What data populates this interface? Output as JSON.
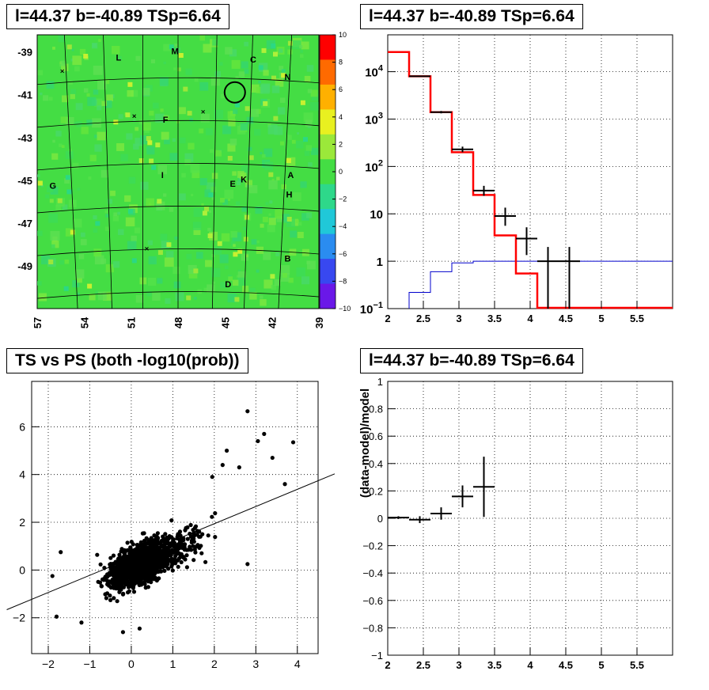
{
  "panels": {
    "map": {
      "title": "l=44.37 b=-40.89 TSp=6.64",
      "y_ticks": [
        "-39",
        "-41",
        "-43",
        "-45",
        "-47",
        "-49"
      ],
      "x_ticks": [
        "57",
        "54",
        "51",
        "48",
        "45",
        "42",
        "39"
      ],
      "colorbar_ticks": [
        "10",
        "8",
        "6",
        "4",
        "2",
        "0",
        "−2",
        "−4",
        "−6",
        "−8",
        "−10"
      ],
      "source_letters": [
        "M",
        "L",
        "C",
        "N",
        "F",
        "I",
        "E",
        "K",
        "A",
        "H",
        "G",
        "B",
        "D"
      ]
    },
    "spectrum": {
      "title": "l=44.37 b=-40.89 TSp=6.64",
      "y_ticks": [
        "10^4",
        "10^3",
        "10^2",
        "10",
        "1",
        "10^-1"
      ],
      "x_ticks": [
        "2",
        "2.5",
        "3",
        "3.5",
        "4",
        "4.5",
        "5",
        "5.5"
      ]
    },
    "scatter": {
      "title": "TS vs PS (both -log10(prob))",
      "x_ticks": [
        "−2",
        "−1",
        "0",
        "1",
        "2",
        "3",
        "4"
      ],
      "y_ticks": [
        "6",
        "4",
        "2",
        "0",
        "−2"
      ]
    },
    "residual": {
      "title": "l=44.37 b=-40.89 TSp=6.64",
      "ylabel": "(data-model)/model",
      "x_ticks": [
        "2",
        "2.5",
        "3",
        "3.5",
        "4",
        "4.5",
        "5",
        "5.5"
      ],
      "y_ticks": [
        "1",
        "0.8",
        "0.6",
        "0.4",
        "0.2",
        "0",
        "−0.2",
        "−0.4",
        "−0.6",
        "−0.8",
        "−1"
      ]
    }
  },
  "colors": {
    "map_bg": "#44dd44",
    "model_line": "#ff0000",
    "background_line": "#0000cc",
    "data": "#000000"
  },
  "chart_data": [
    {
      "type": "heatmap",
      "title": "l=44.37 b=-40.89 TSp=6.64",
      "xlim": [
        57,
        39
      ],
      "ylim": [
        -51,
        -38.2
      ],
      "zlim": [
        -10,
        10
      ],
      "typical_value": 1,
      "source_labels": [
        {
          "name": "M",
          "x": 48.2,
          "y": -39.1
        },
        {
          "name": "L",
          "x": 51.8,
          "y": -39.4
        },
        {
          "name": "C",
          "x": 43.2,
          "y": -39.5
        },
        {
          "name": "N",
          "x": 41.0,
          "y": -40.3
        },
        {
          "name": "F",
          "x": 48.8,
          "y": -42.3
        },
        {
          "name": "I",
          "x": 49.0,
          "y": -44.9
        },
        {
          "name": "E",
          "x": 44.5,
          "y": -45.3
        },
        {
          "name": "K",
          "x": 43.8,
          "y": -45.1
        },
        {
          "name": "A",
          "x": 40.8,
          "y": -44.9
        },
        {
          "name": "H",
          "x": 40.9,
          "y": -45.8
        },
        {
          "name": "G",
          "x": 56.0,
          "y": -45.4
        },
        {
          "name": "B",
          "x": 41.0,
          "y": -48.8
        },
        {
          "name": "D",
          "x": 44.8,
          "y": -50.0
        }
      ],
      "marked_source": {
        "x": 44.37,
        "y": -40.89
      }
    },
    {
      "type": "line",
      "title": "l=44.37 b=-40.89 TSp=6.64",
      "yscale": "log",
      "xlim": [
        2,
        6
      ],
      "ylim": [
        0.1,
        60000
      ],
      "series": [
        {
          "kind": "step",
          "edges": [
            2,
            2.3,
            2.6,
            2.9,
            3.2,
            3.5,
            3.8,
            4.1,
            4.4,
            6
          ],
          "values": [
            26000,
            8000,
            1400,
            200,
            25,
            3.5,
            0.55,
            0.1,
            0.1,
            0.1
          ]
        },
        {
          "kind": "step",
          "edges": [
            2.3,
            2.6,
            2.9,
            3.2,
            3.5,
            6
          ],
          "values": [
            0.22,
            0.6,
            0.92,
            1.0,
            1.0,
            1.0
          ]
        },
        {
          "kind": "errorbar",
          "points": [
            {
              "x": 2.45,
              "y": 8000,
              "xerr": 0.15,
              "ylo": 7800,
              "yhi": 8200
            },
            {
              "x": 2.75,
              "y": 1400,
              "xerr": 0.15,
              "ylo": 1320,
              "yhi": 1480
            },
            {
              "x": 3.05,
              "y": 230,
              "xerr": 0.15,
              "ylo": 200,
              "yhi": 262
            },
            {
              "x": 3.35,
              "y": 31,
              "xerr": 0.15,
              "ylo": 24,
              "yhi": 39
            },
            {
              "x": 3.65,
              "y": 9,
              "xerr": 0.15,
              "ylo": 5.6,
              "yhi": 13.5
            },
            {
              "x": 3.95,
              "y": 3,
              "xerr": 0.15,
              "ylo": 1.35,
              "yhi": 5.2
            },
            {
              "x": 4.25,
              "y": 1,
              "xerr": 0.15,
              "ylo": 0.09,
              "yhi": 2
            },
            {
              "x": 4.55,
              "y": 1,
              "xerr": 0.15,
              "ylo": 0.09,
              "yhi": 2
            }
          ]
        }
      ]
    },
    {
      "type": "scatter",
      "title": "TS vs PS (both -log10(prob))",
      "xlim": [
        -2.4,
        4.5
      ],
      "ylim": [
        -3.5,
        7.9
      ],
      "fit_line": {
        "slope": 0.72,
        "intercept": 0.5
      },
      "notable_points": [
        [
          2.8,
          6.65
        ],
        [
          3.2,
          5.7
        ],
        [
          3.9,
          5.35
        ],
        [
          3.4,
          4.7
        ],
        [
          2.3,
          5.0
        ],
        [
          3.05,
          5.4
        ],
        [
          3.7,
          3.6
        ],
        [
          2.6,
          4.3
        ],
        [
          1.95,
          3.9
        ],
        [
          2.2,
          4.4
        ],
        [
          2.8,
          0.25
        ],
        [
          -1.8,
          -1.95
        ],
        [
          -1.9,
          -0.25
        ],
        [
          -1.7,
          0.75
        ],
        [
          -0.2,
          -2.6
        ],
        [
          0.2,
          -2.45
        ],
        [
          -1.2,
          -2.2
        ]
      ]
    },
    {
      "type": "scatter",
      "title": "l=44.37 b=-40.89 TSp=6.64",
      "ylabel": "(data-model)/model",
      "xlim": [
        2,
        6
      ],
      "ylim": [
        -1,
        1
      ],
      "points": [
        {
          "x": 2.15,
          "y": 0.005,
          "xerr": 0.15,
          "yerr": 0.01
        },
        {
          "x": 2.45,
          "y": -0.01,
          "xerr": 0.15,
          "yerr": 0.025
        },
        {
          "x": 2.75,
          "y": 0.035,
          "xerr": 0.15,
          "yerr": 0.045
        },
        {
          "x": 3.05,
          "y": 0.16,
          "xerr": 0.15,
          "yerr": 0.08
        },
        {
          "x": 3.35,
          "y": 0.23,
          "xerr": 0.15,
          "yerr": 0.22
        }
      ]
    }
  ]
}
